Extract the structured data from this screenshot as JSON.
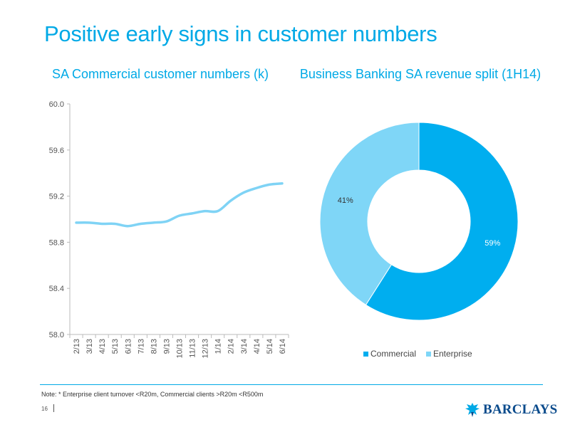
{
  "slide": {
    "title": "Positive early signs in customer numbers",
    "note": "Note: * Enterprise client turnover <R20m, Commercial clients >R20m <R500m",
    "page_number": "16",
    "brand": "BARCLAYS"
  },
  "colors": {
    "accent": "#00a9e6",
    "line": "#7fd3f5",
    "commercial": "#00aeef",
    "enterprise": "#7fd6f7",
    "brand": "#0a4b8c"
  },
  "chart_data": [
    {
      "type": "line",
      "title": "SA Commercial customer numbers (k)",
      "categories": [
        "2/13",
        "3/13",
        "4/13",
        "5/13",
        "6/13",
        "7/13",
        "8/13",
        "9/13",
        "10/13",
        "11/13",
        "12/13",
        "1/14",
        "2/14",
        "3/14",
        "4/14",
        "5/14",
        "6/14"
      ],
      "series": [
        {
          "values": [
            58.97,
            58.97,
            58.96,
            58.96,
            58.94,
            58.96,
            58.97,
            58.98,
            59.03,
            59.05,
            59.07,
            59.07,
            59.16,
            59.23,
            59.27,
            59.3,
            59.31
          ]
        }
      ],
      "yticks": [
        "58.0",
        "58.4",
        "58.8",
        "59.2",
        "59.6",
        "60.0"
      ],
      "ylim": [
        58.0,
        60.0
      ],
      "grid": false
    },
    {
      "type": "pie",
      "donut": true,
      "title": "Business Banking SA revenue split (1H14)",
      "slices": [
        {
          "name": "Commercial",
          "value": 59,
          "label": "59%"
        },
        {
          "name": "Enterprise",
          "value": 41,
          "label": "41%"
        }
      ],
      "legend": "bottom"
    }
  ]
}
